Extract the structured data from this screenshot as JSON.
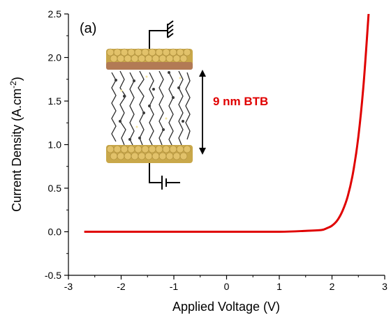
{
  "chart_data": {
    "type": "line",
    "panel_label": "(a)",
    "xlabel": "Applied Voltage (V)",
    "ylabel_main": "Current Density (A.cm",
    "ylabel_sup": "-2",
    "ylabel_close": ")",
    "xlim": [
      -3,
      3
    ],
    "ylim": [
      -0.5,
      2.5
    ],
    "xticks": [
      -3,
      -2,
      -1,
      0,
      1,
      2,
      3
    ],
    "xtick_labels": [
      "-3",
      "-2",
      "-1",
      "0",
      "1",
      "2",
      "3"
    ],
    "yticks": [
      -0.5,
      0.0,
      0.5,
      1.0,
      1.5,
      2.0,
      2.5
    ],
    "ytick_labels": [
      "-0.5",
      "0.0",
      "0.5",
      "1.0",
      "1.5",
      "2.0",
      "2.5"
    ],
    "grid": false,
    "annotation": "9 nm BTB",
    "colors": {
      "series": "#e00000",
      "annotation": "#e00000",
      "gold": "#c9a84a",
      "molecule": "#2a2a2a"
    },
    "series": [
      {
        "color": "#e00000",
        "x": [
          -2.7,
          -2.0,
          -1.0,
          0.0,
          1.0,
          1.5,
          1.8,
          1.9,
          2.0,
          2.1,
          2.2,
          2.3,
          2.4,
          2.5,
          2.6,
          2.7
        ],
        "y": [
          0.0,
          0.0,
          0.0,
          0.0,
          0.0,
          0.01,
          0.02,
          0.04,
          0.07,
          0.13,
          0.24,
          0.41,
          0.68,
          1.09,
          1.7,
          2.55
        ]
      }
    ]
  }
}
